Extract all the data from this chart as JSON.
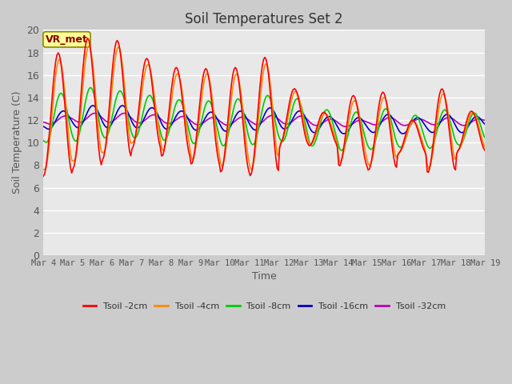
{
  "title": "Soil Temperatures Set 2",
  "xlabel": "Time",
  "ylabel": "Soil Temperature (C)",
  "ylim": [
    0,
    20
  ],
  "yticks": [
    0,
    2,
    4,
    6,
    8,
    10,
    12,
    14,
    16,
    18,
    20
  ],
  "x_labels": [
    "Mar 4",
    "Mar 5",
    "Mar 6",
    "Mar 7",
    "Mar 8",
    "Mar 9",
    "Mar 10",
    "Mar 11",
    "Mar 12",
    "Mar 13",
    "Mar 14",
    "Mar 15",
    "Mar 16",
    "Mar 17",
    "Mar 18",
    "Mar 19"
  ],
  "annotation": "VR_met",
  "fig_bg": "#cccccc",
  "plot_bg": "#e8e8e8",
  "grid_color": "#ffffff",
  "series": {
    "Tsoil -2cm": {
      "color": "#ff0000",
      "lw": 1.2
    },
    "Tsoil -4cm": {
      "color": "#ff8800",
      "lw": 1.2
    },
    "Tsoil -8cm": {
      "color": "#00cc00",
      "lw": 1.2
    },
    "Tsoil -16cm": {
      "color": "#0000cc",
      "lw": 1.2
    },
    "Tsoil -32cm": {
      "color": "#bb00bb",
      "lw": 1.2
    }
  }
}
